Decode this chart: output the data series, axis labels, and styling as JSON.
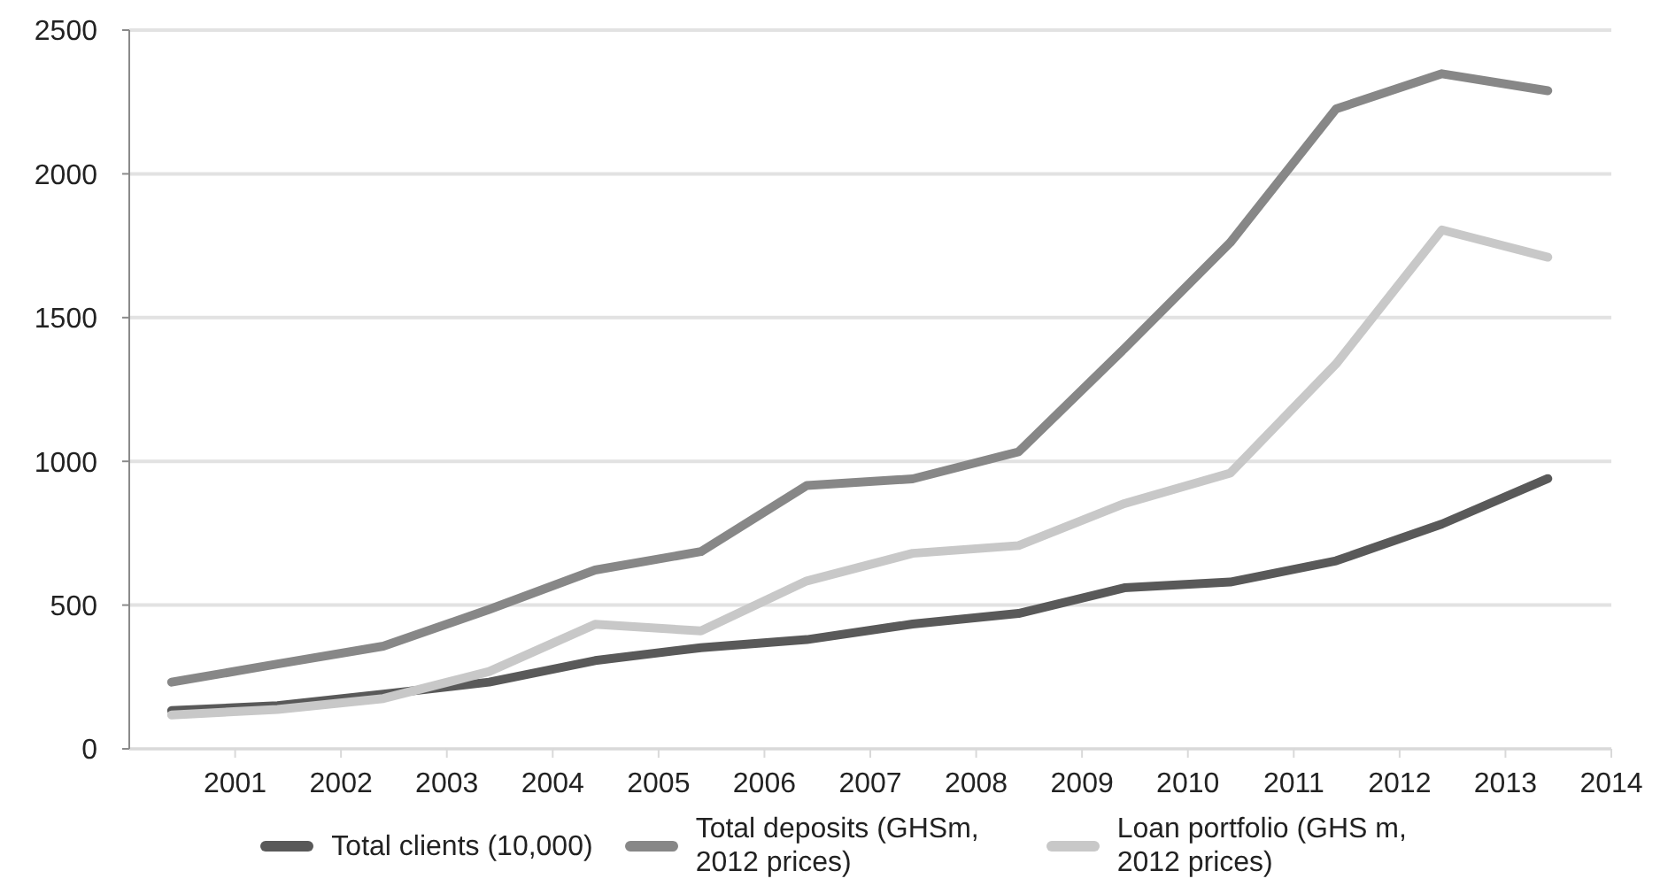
{
  "chart_data": {
    "type": "line",
    "x": [
      2000.4,
      2001.4,
      2002.4,
      2003.4,
      2004.4,
      2005.4,
      2006.4,
      2007.4,
      2008.4,
      2009.4,
      2010.4,
      2011.4,
      2012.4,
      2013.4
    ],
    "xlim": [
      2000,
      2014
    ],
    "xticks": [
      2001,
      2002,
      2003,
      2004,
      2005,
      2006,
      2007,
      2008,
      2009,
      2010,
      2011,
      2012,
      2013,
      2014
    ],
    "ylim": [
      0,
      2500
    ],
    "yticks": [
      0,
      500,
      1000,
      1500,
      2000,
      2500
    ],
    "grid": "y",
    "legend": "bottom",
    "marker": "none",
    "line_style": "solid",
    "series": [
      {
        "name": "Total clients (10,000)",
        "color": "#595959",
        "values": [
          133,
          150,
          190,
          232,
          307,
          352,
          380,
          434,
          471,
          560,
          580,
          654,
          782,
          940
        ]
      },
      {
        "name": "Total deposits (GHSm, 2012 prices)",
        "color": "#878787",
        "values": [
          232,
          295,
          357,
          485,
          622,
          686,
          916,
          939,
          1033,
          1392,
          1761,
          2226,
          2348,
          2289
        ]
      },
      {
        "name": "Loan portfolio (GHS m, 2012 prices)",
        "color": "#c8c8c8",
        "values": [
          118,
          137,
          175,
          269,
          433,
          410,
          584,
          680,
          707,
          853,
          959,
          1339,
          1805,
          1710
        ]
      }
    ]
  }
}
